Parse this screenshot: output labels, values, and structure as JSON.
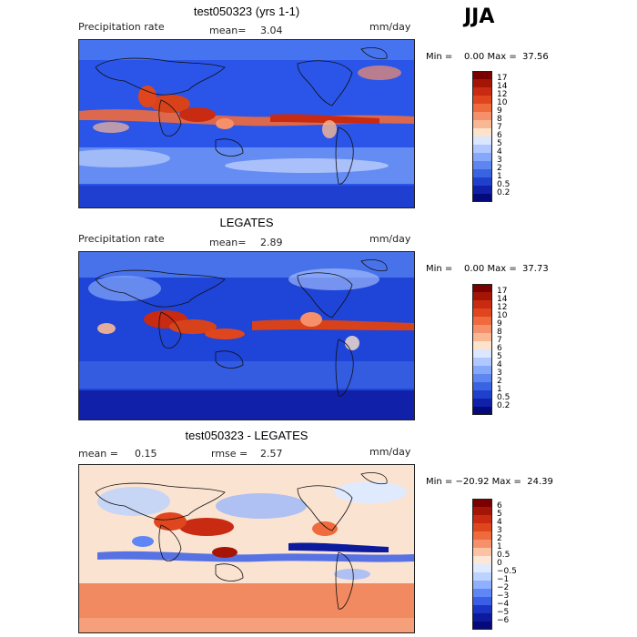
{
  "season": "JJA",
  "panels": [
    {
      "title": "test050323 (yrs 1-1)",
      "left_label": "Precipitation rate",
      "stat_label": "mean=",
      "stat_value": "3.04",
      "stat2_label": "",
      "stat2_value": "",
      "units": "mm/day",
      "minmax": "Min =    0.00 Max =  37.56",
      "colorbar_labels": [
        "17",
        "14",
        "12",
        "10",
        "9",
        "8",
        "7",
        "6",
        "5",
        "4",
        "3",
        "2",
        "1",
        "0.5",
        "0.2"
      ],
      "colorbar_colors": [
        "#7a0000",
        "#a51505",
        "#c82a12",
        "#e0461e",
        "#ef6a3c",
        "#f5906a",
        "#f9b894",
        "#fde3cc",
        "#dbe6ff",
        "#b0c8ff",
        "#86a8fa",
        "#5e86f0",
        "#3a63e2",
        "#1f40cc",
        "#1020a8",
        "#050a7a"
      ]
    },
    {
      "title": "LEGATES",
      "left_label": "Precipitation rate",
      "stat_label": "mean=",
      "stat_value": "2.89",
      "stat2_label": "",
      "stat2_value": "",
      "units": "mm/day",
      "minmax": "Min =    0.00 Max =  37.73",
      "colorbar_labels": [
        "17",
        "14",
        "12",
        "10",
        "9",
        "8",
        "7",
        "6",
        "5",
        "4",
        "3",
        "2",
        "1",
        "0.5",
        "0.2"
      ],
      "colorbar_colors": [
        "#7a0000",
        "#a51505",
        "#c82a12",
        "#e0461e",
        "#ef6a3c",
        "#f5906a",
        "#f9b894",
        "#fde3cc",
        "#dbe6ff",
        "#b0c8ff",
        "#86a8fa",
        "#5e86f0",
        "#3a63e2",
        "#1f40cc",
        "#1020a8",
        "#050a7a"
      ]
    },
    {
      "title": "test050323 - LEGATES",
      "left_label": "mean =",
      "stat_label": "",
      "stat_value": "0.15",
      "stat2_label": "rmse =",
      "stat2_value": "2.57",
      "units": "mm/day",
      "minmax": "Min = −20.92 Max =  24.39",
      "colorbar_labels": [
        "6",
        "5",
        "4",
        "3",
        "2",
        "1",
        "0.5",
        "0",
        "−0.5",
        "−1",
        "−2",
        "−3",
        "−4",
        "−5",
        "−6"
      ],
      "colorbar_colors": [
        "#7a0000",
        "#a51505",
        "#c82a12",
        "#e0461e",
        "#ef6a3c",
        "#f5906a",
        "#fbc3a3",
        "#fde6d8",
        "#dfeaff",
        "#bcd2ff",
        "#8fb0ff",
        "#5f86f5",
        "#3a5ee6",
        "#1c34c4",
        "#0c1a9e",
        "#050a78"
      ]
    }
  ],
  "colors": {
    "dry_base": "#2a55e8",
    "wet_band": "#d8421a",
    "diff_base": "#fbe3d2"
  }
}
